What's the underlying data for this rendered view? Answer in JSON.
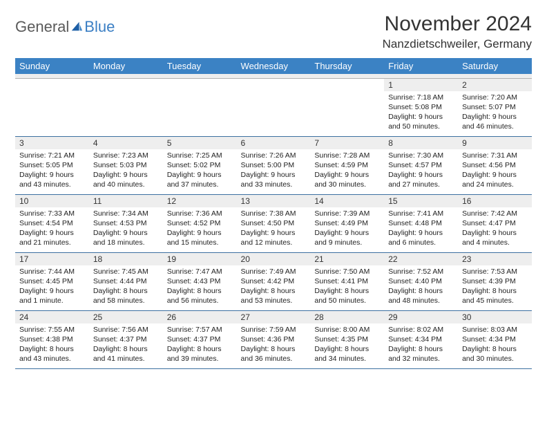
{
  "logo": {
    "part1": "General",
    "part2": "Blue"
  },
  "title": "November 2024",
  "location": "Nanzdietschweiler, Germany",
  "colors": {
    "header_bg": "#3b82c4",
    "header_text": "#ffffff",
    "daynum_bg": "#eeeeee",
    "row_border": "#3b6fa0",
    "logo_gray": "#5a5a5a",
    "logo_blue": "#3b7fc4"
  },
  "day_headers": [
    "Sunday",
    "Monday",
    "Tuesday",
    "Wednesday",
    "Thursday",
    "Friday",
    "Saturday"
  ],
  "weeks": [
    [
      {
        "n": "",
        "sr": "",
        "ss": "",
        "dl": ""
      },
      {
        "n": "",
        "sr": "",
        "ss": "",
        "dl": ""
      },
      {
        "n": "",
        "sr": "",
        "ss": "",
        "dl": ""
      },
      {
        "n": "",
        "sr": "",
        "ss": "",
        "dl": ""
      },
      {
        "n": "",
        "sr": "",
        "ss": "",
        "dl": ""
      },
      {
        "n": "1",
        "sr": "Sunrise: 7:18 AM",
        "ss": "Sunset: 5:08 PM",
        "dl": "Daylight: 9 hours and 50 minutes."
      },
      {
        "n": "2",
        "sr": "Sunrise: 7:20 AM",
        "ss": "Sunset: 5:07 PM",
        "dl": "Daylight: 9 hours and 46 minutes."
      }
    ],
    [
      {
        "n": "3",
        "sr": "Sunrise: 7:21 AM",
        "ss": "Sunset: 5:05 PM",
        "dl": "Daylight: 9 hours and 43 minutes."
      },
      {
        "n": "4",
        "sr": "Sunrise: 7:23 AM",
        "ss": "Sunset: 5:03 PM",
        "dl": "Daylight: 9 hours and 40 minutes."
      },
      {
        "n": "5",
        "sr": "Sunrise: 7:25 AM",
        "ss": "Sunset: 5:02 PM",
        "dl": "Daylight: 9 hours and 37 minutes."
      },
      {
        "n": "6",
        "sr": "Sunrise: 7:26 AM",
        "ss": "Sunset: 5:00 PM",
        "dl": "Daylight: 9 hours and 33 minutes."
      },
      {
        "n": "7",
        "sr": "Sunrise: 7:28 AM",
        "ss": "Sunset: 4:59 PM",
        "dl": "Daylight: 9 hours and 30 minutes."
      },
      {
        "n": "8",
        "sr": "Sunrise: 7:30 AM",
        "ss": "Sunset: 4:57 PM",
        "dl": "Daylight: 9 hours and 27 minutes."
      },
      {
        "n": "9",
        "sr": "Sunrise: 7:31 AM",
        "ss": "Sunset: 4:56 PM",
        "dl": "Daylight: 9 hours and 24 minutes."
      }
    ],
    [
      {
        "n": "10",
        "sr": "Sunrise: 7:33 AM",
        "ss": "Sunset: 4:54 PM",
        "dl": "Daylight: 9 hours and 21 minutes."
      },
      {
        "n": "11",
        "sr": "Sunrise: 7:34 AM",
        "ss": "Sunset: 4:53 PM",
        "dl": "Daylight: 9 hours and 18 minutes."
      },
      {
        "n": "12",
        "sr": "Sunrise: 7:36 AM",
        "ss": "Sunset: 4:52 PM",
        "dl": "Daylight: 9 hours and 15 minutes."
      },
      {
        "n": "13",
        "sr": "Sunrise: 7:38 AM",
        "ss": "Sunset: 4:50 PM",
        "dl": "Daylight: 9 hours and 12 minutes."
      },
      {
        "n": "14",
        "sr": "Sunrise: 7:39 AM",
        "ss": "Sunset: 4:49 PM",
        "dl": "Daylight: 9 hours and 9 minutes."
      },
      {
        "n": "15",
        "sr": "Sunrise: 7:41 AM",
        "ss": "Sunset: 4:48 PM",
        "dl": "Daylight: 9 hours and 6 minutes."
      },
      {
        "n": "16",
        "sr": "Sunrise: 7:42 AM",
        "ss": "Sunset: 4:47 PM",
        "dl": "Daylight: 9 hours and 4 minutes."
      }
    ],
    [
      {
        "n": "17",
        "sr": "Sunrise: 7:44 AM",
        "ss": "Sunset: 4:45 PM",
        "dl": "Daylight: 9 hours and 1 minute."
      },
      {
        "n": "18",
        "sr": "Sunrise: 7:45 AM",
        "ss": "Sunset: 4:44 PM",
        "dl": "Daylight: 8 hours and 58 minutes."
      },
      {
        "n": "19",
        "sr": "Sunrise: 7:47 AM",
        "ss": "Sunset: 4:43 PM",
        "dl": "Daylight: 8 hours and 56 minutes."
      },
      {
        "n": "20",
        "sr": "Sunrise: 7:49 AM",
        "ss": "Sunset: 4:42 PM",
        "dl": "Daylight: 8 hours and 53 minutes."
      },
      {
        "n": "21",
        "sr": "Sunrise: 7:50 AM",
        "ss": "Sunset: 4:41 PM",
        "dl": "Daylight: 8 hours and 50 minutes."
      },
      {
        "n": "22",
        "sr": "Sunrise: 7:52 AM",
        "ss": "Sunset: 4:40 PM",
        "dl": "Daylight: 8 hours and 48 minutes."
      },
      {
        "n": "23",
        "sr": "Sunrise: 7:53 AM",
        "ss": "Sunset: 4:39 PM",
        "dl": "Daylight: 8 hours and 45 minutes."
      }
    ],
    [
      {
        "n": "24",
        "sr": "Sunrise: 7:55 AM",
        "ss": "Sunset: 4:38 PM",
        "dl": "Daylight: 8 hours and 43 minutes."
      },
      {
        "n": "25",
        "sr": "Sunrise: 7:56 AM",
        "ss": "Sunset: 4:37 PM",
        "dl": "Daylight: 8 hours and 41 minutes."
      },
      {
        "n": "26",
        "sr": "Sunrise: 7:57 AM",
        "ss": "Sunset: 4:37 PM",
        "dl": "Daylight: 8 hours and 39 minutes."
      },
      {
        "n": "27",
        "sr": "Sunrise: 7:59 AM",
        "ss": "Sunset: 4:36 PM",
        "dl": "Daylight: 8 hours and 36 minutes."
      },
      {
        "n": "28",
        "sr": "Sunrise: 8:00 AM",
        "ss": "Sunset: 4:35 PM",
        "dl": "Daylight: 8 hours and 34 minutes."
      },
      {
        "n": "29",
        "sr": "Sunrise: 8:02 AM",
        "ss": "Sunset: 4:34 PM",
        "dl": "Daylight: 8 hours and 32 minutes."
      },
      {
        "n": "30",
        "sr": "Sunrise: 8:03 AM",
        "ss": "Sunset: 4:34 PM",
        "dl": "Daylight: 8 hours and 30 minutes."
      }
    ]
  ]
}
